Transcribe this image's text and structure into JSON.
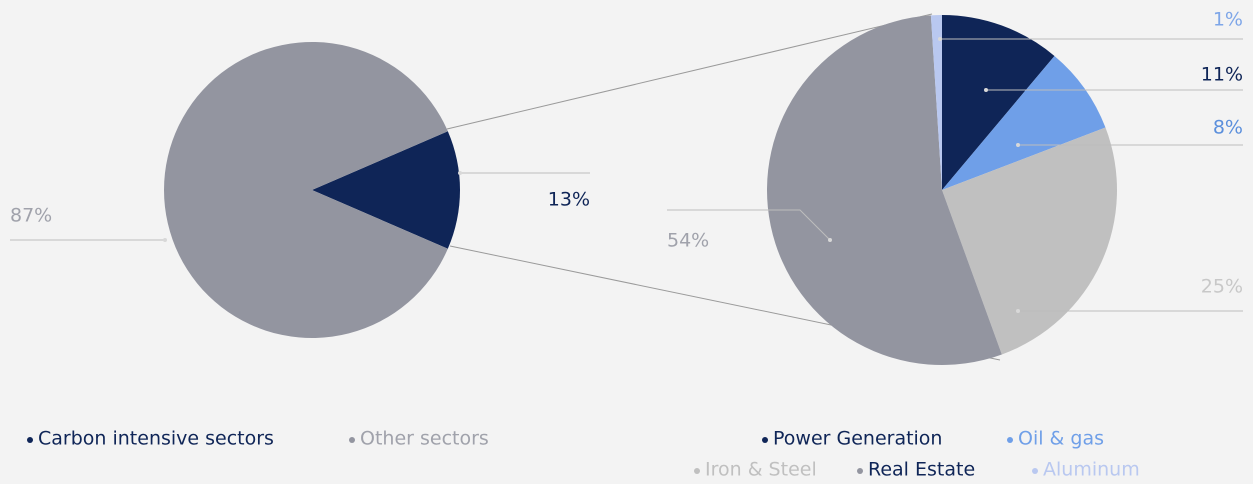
{
  "chart_data": [
    {
      "type": "pie",
      "categories": [
        "Carbon intensive sectors",
        "Other sectors"
      ],
      "values": [
        13,
        87
      ],
      "value_labels": [
        "13%",
        "87%"
      ],
      "colors": [
        "#0f2557",
        "#9395a0"
      ]
    },
    {
      "type": "pie",
      "categories": [
        "Power Generation",
        "Oil & gas",
        "Iron & Steel",
        "Real Estate",
        "Aluminum"
      ],
      "values": [
        11,
        8,
        25,
        54,
        1
      ],
      "value_labels": [
        "11%",
        "8%",
        "25%",
        "54%",
        "1%"
      ],
      "colors": [
        "#0f2557",
        "#6f9fe8",
        "#c0c0c0",
        "#9395a0",
        "#b9c8f0"
      ]
    }
  ]
}
